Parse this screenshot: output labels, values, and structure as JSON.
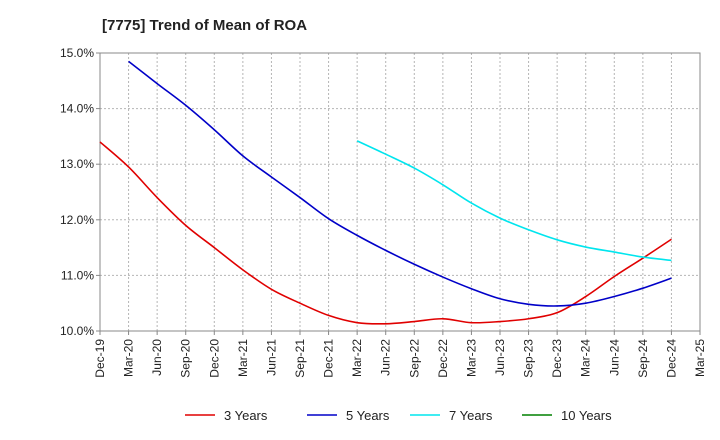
{
  "chart_data": {
    "type": "line",
    "title": "[7775]  Trend of Mean of ROA",
    "xlabel": "",
    "ylabel": "",
    "ylim": [
      10.0,
      15.0
    ],
    "yticks": [
      "10.0%",
      "11.0%",
      "12.0%",
      "13.0%",
      "14.0%",
      "15.0%"
    ],
    "ytick_values": [
      10,
      11,
      12,
      13,
      14,
      15
    ],
    "categories": [
      "Dec-19",
      "Mar-20",
      "Jun-20",
      "Sep-20",
      "Dec-20",
      "Mar-21",
      "Jun-21",
      "Sep-21",
      "Dec-21",
      "Mar-22",
      "Jun-22",
      "Sep-22",
      "Dec-22",
      "Mar-23",
      "Jun-23",
      "Sep-23",
      "Dec-23",
      "Mar-24",
      "Jun-24",
      "Sep-24",
      "Dec-24",
      "Mar-25"
    ],
    "grid": true,
    "legend_position": "bottom",
    "series": [
      {
        "name": "3 Years",
        "color": "#e00000",
        "values": [
          13.4,
          12.95,
          12.4,
          11.9,
          11.5,
          11.1,
          10.75,
          10.5,
          10.28,
          10.15,
          10.13,
          10.17,
          10.22,
          10.15,
          10.17,
          10.22,
          10.33,
          10.62,
          10.98,
          11.31,
          11.65,
          null
        ]
      },
      {
        "name": "5 Years",
        "color": "#0000c8",
        "values": [
          null,
          14.85,
          14.45,
          14.06,
          13.62,
          13.15,
          12.77,
          12.4,
          12.02,
          11.72,
          11.45,
          11.2,
          10.97,
          10.76,
          10.58,
          10.48,
          10.45,
          10.5,
          10.62,
          10.77,
          10.95,
          null
        ]
      },
      {
        "name": "7 Years",
        "color": "#00e5ee",
        "values": [
          null,
          null,
          null,
          null,
          null,
          null,
          null,
          null,
          null,
          13.42,
          13.18,
          12.93,
          12.63,
          12.3,
          12.03,
          11.82,
          11.64,
          11.51,
          11.42,
          11.33,
          11.27,
          null
        ]
      },
      {
        "name": "10 Years",
        "color": "#008000",
        "values": [
          null,
          null,
          null,
          null,
          null,
          null,
          null,
          null,
          null,
          null,
          null,
          null,
          null,
          null,
          null,
          null,
          null,
          null,
          null,
          null,
          null,
          null
        ]
      }
    ]
  }
}
